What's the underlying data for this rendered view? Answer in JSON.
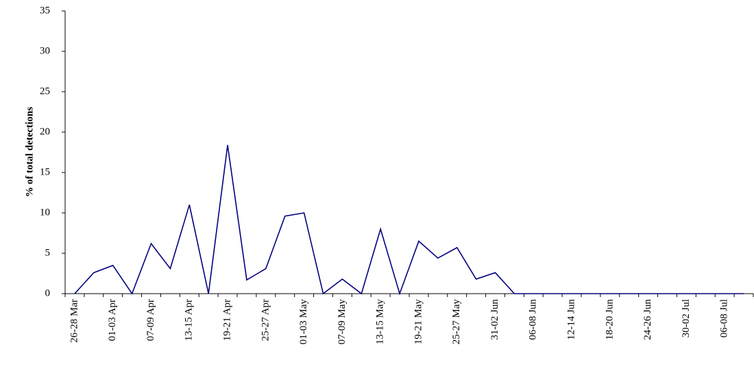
{
  "chart_data": {
    "type": "line",
    "y_label": "% of total detections",
    "categories": [
      "26-28 Mar",
      null,
      "01-03 Apr",
      null,
      "07-09 Apr",
      null,
      "13-15 Apr",
      null,
      "19-21 Apr",
      null,
      "25-27 Apr",
      null,
      "01-03 May",
      null,
      "07-09 May",
      null,
      "13-15 May",
      null,
      "19-21 May",
      null,
      "25-27 May",
      null,
      "31-02 Jun",
      null,
      "06-08 Jun",
      null,
      "12-14 Jun",
      null,
      "18-20 Jun",
      null,
      "24-26 Jun",
      null,
      "30-02 Jul",
      null,
      "06-08 Jul",
      null
    ],
    "values": [
      0,
      2.6,
      3.5,
      0,
      6.2,
      3.1,
      11.0,
      0,
      18.4,
      1.7,
      3.1,
      9.6,
      10.0,
      0,
      1.8,
      0,
      8.0,
      0,
      6.5,
      4.4,
      5.7,
      1.8,
      2.6,
      0,
      0,
      0,
      0,
      0,
      0,
      0,
      0,
      0,
      0,
      0,
      0,
      0
    ],
    "color": "#000080",
    "ylim": [
      0,
      35
    ],
    "yticks": [
      0,
      5,
      10,
      15,
      20,
      25,
      30,
      35
    ]
  }
}
